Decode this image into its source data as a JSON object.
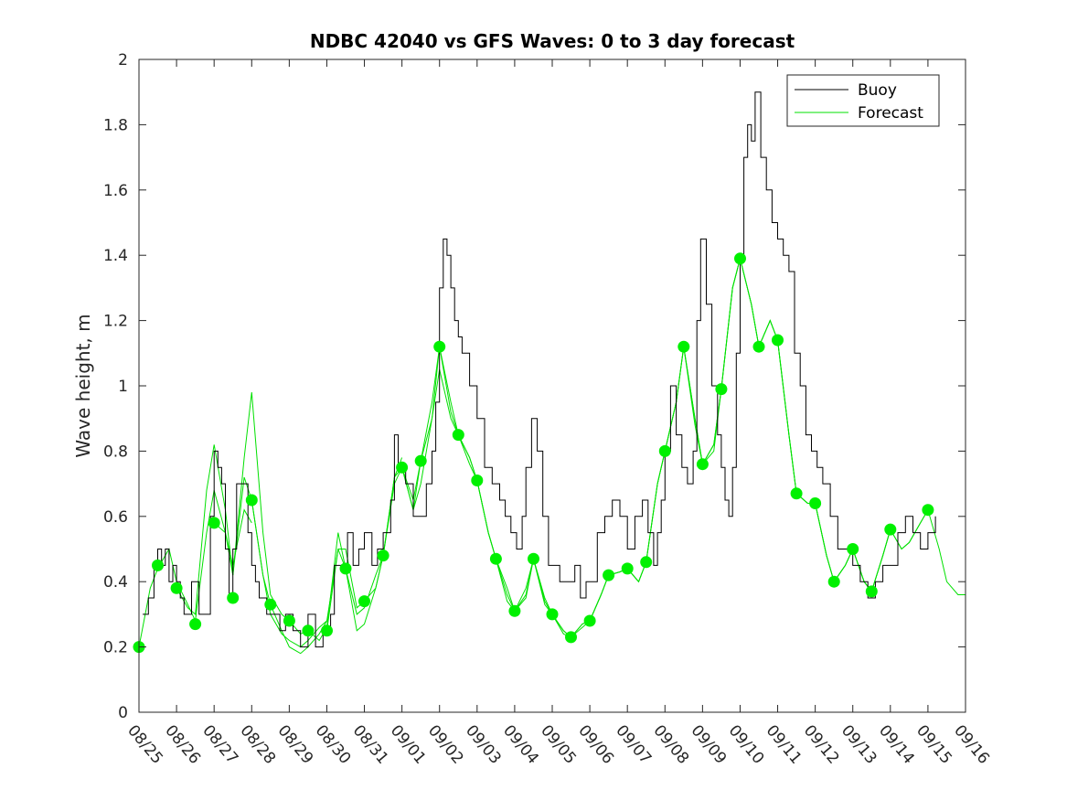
{
  "colors": {
    "buoy": "#000000",
    "forecast": "#00e000",
    "point": "#00f000"
  },
  "chart_data": {
    "type": "line",
    "title": "NDBC 42040 vs GFS Waves: 0 to 3 day forecast",
    "xlabel": "",
    "ylabel": "Wave height, m",
    "xlim": [
      0,
      22
    ],
    "ylim": [
      0,
      2
    ],
    "y_ticks": [
      0,
      0.2,
      0.4,
      0.6,
      0.8,
      1,
      1.2,
      1.4,
      1.6,
      1.8,
      2
    ],
    "y_tick_labels": [
      "0",
      "0.2",
      "0.4",
      "0.6",
      "0.8",
      "1",
      "1.2",
      "1.4",
      "1.6",
      "1.8",
      "2"
    ],
    "x_ticks": [
      0,
      1,
      2,
      3,
      4,
      5,
      6,
      7,
      8,
      9,
      10,
      11,
      12,
      13,
      14,
      15,
      16,
      17,
      18,
      19,
      20,
      21,
      22
    ],
    "x_tick_labels": [
      "08/25",
      "08/26",
      "08/27",
      "08/28",
      "08/29",
      "08/30",
      "08/31",
      "09/01",
      "09/02",
      "09/03",
      "09/04",
      "09/05",
      "09/06",
      "09/07",
      "09/08",
      "09/09",
      "09/10",
      "09/11",
      "09/12",
      "09/13",
      "09/14",
      "09/15",
      "09/16"
    ],
    "legend": {
      "position": "top-right",
      "entries": [
        "Buoy",
        "Forecast"
      ]
    },
    "buoy": {
      "x": [
        0.1,
        0.25,
        0.4,
        0.5,
        0.6,
        0.7,
        0.8,
        0.9,
        1.0,
        1.1,
        1.2,
        1.4,
        1.6,
        1.75,
        1.9,
        2.0,
        2.1,
        2.2,
        2.3,
        2.4,
        2.5,
        2.6,
        2.75,
        2.9,
        3.0,
        3.1,
        3.2,
        3.4,
        3.6,
        3.75,
        3.9,
        4.1,
        4.3,
        4.5,
        4.7,
        4.9,
        5.1,
        5.2,
        5.4,
        5.55,
        5.7,
        5.85,
        6.0,
        6.2,
        6.35,
        6.5,
        6.7,
        6.8,
        6.9,
        7.0,
        7.1,
        7.3,
        7.5,
        7.65,
        7.8,
        7.9,
        8.0,
        8.1,
        8.2,
        8.3,
        8.4,
        8.5,
        8.6,
        8.8,
        9.0,
        9.2,
        9.4,
        9.6,
        9.75,
        9.9,
        10.05,
        10.2,
        10.3,
        10.45,
        10.6,
        10.75,
        10.9,
        11.05,
        11.2,
        11.4,
        11.6,
        11.75,
        11.9,
        12.05,
        12.2,
        12.4,
        12.6,
        12.8,
        13.0,
        13.2,
        13.4,
        13.55,
        13.7,
        13.8,
        13.9,
        14.0,
        14.15,
        14.3,
        14.45,
        14.6,
        14.75,
        14.85,
        14.95,
        15.1,
        15.25,
        15.4,
        15.5,
        15.6,
        15.7,
        15.8,
        15.9,
        16.0,
        16.1,
        16.2,
        16.3,
        16.4,
        16.55,
        16.7,
        16.85,
        17.0,
        17.15,
        17.3,
        17.45,
        17.6,
        17.75,
        17.9,
        18.05,
        18.2,
        18.4,
        18.6,
        18.8,
        19.0,
        19.2,
        19.4,
        19.6,
        19.8,
        20.0,
        20.2,
        20.4,
        20.6,
        20.8,
        21.0,
        21.2
      ],
      "y": [
        0.3,
        0.35,
        0.45,
        0.5,
        0.45,
        0.5,
        0.4,
        0.45,
        0.4,
        0.35,
        0.3,
        0.4,
        0.3,
        0.3,
        0.6,
        0.8,
        0.75,
        0.7,
        0.5,
        0.35,
        0.5,
        0.7,
        0.7,
        0.55,
        0.45,
        0.4,
        0.35,
        0.3,
        0.3,
        0.25,
        0.3,
        0.25,
        0.2,
        0.3,
        0.2,
        0.25,
        0.3,
        0.45,
        0.45,
        0.55,
        0.45,
        0.5,
        0.55,
        0.45,
        0.5,
        0.55,
        0.65,
        0.85,
        0.75,
        0.75,
        0.7,
        0.6,
        0.6,
        0.7,
        0.8,
        0.95,
        1.3,
        1.45,
        1.4,
        1.3,
        1.2,
        1.15,
        1.1,
        1.0,
        0.9,
        0.75,
        0.7,
        0.65,
        0.6,
        0.55,
        0.5,
        0.6,
        0.75,
        0.9,
        0.8,
        0.6,
        0.45,
        0.45,
        0.4,
        0.4,
        0.45,
        0.35,
        0.4,
        0.4,
        0.55,
        0.6,
        0.65,
        0.6,
        0.5,
        0.6,
        0.65,
        0.55,
        0.45,
        0.55,
        0.65,
        0.8,
        1.0,
        0.85,
        0.75,
        0.7,
        0.8,
        1.2,
        1.45,
        1.25,
        1.0,
        0.85,
        0.75,
        0.65,
        0.6,
        0.75,
        1.1,
        1.4,
        1.7,
        1.8,
        1.75,
        1.9,
        1.7,
        1.6,
        1.5,
        1.45,
        1.4,
        1.35,
        1.1,
        1.0,
        0.85,
        0.8,
        0.75,
        0.7,
        0.6,
        0.5,
        0.5,
        0.45,
        0.4,
        0.35,
        0.4,
        0.45,
        0.45,
        0.55,
        0.6,
        0.55,
        0.5,
        0.55,
        0.6
      ]
    },
    "forecast_runs": [
      {
        "x": [
          0.0,
          0.3,
          0.5,
          0.8,
          1.0,
          1.3,
          1.5,
          1.8,
          2.0,
          2.3,
          2.5,
          2.8,
          3.0
        ],
        "y": [
          0.2,
          0.38,
          0.44,
          0.5,
          0.4,
          0.33,
          0.28,
          0.55,
          0.68,
          0.55,
          0.45,
          0.62,
          0.58
        ]
      },
      {
        "x": [
          1.0,
          1.3,
          1.5,
          1.8,
          2.0,
          2.3,
          2.5,
          2.8,
          3.0,
          3.3,
          3.5,
          3.8,
          4.0
        ],
        "y": [
          0.38,
          0.32,
          0.3,
          0.68,
          0.82,
          0.62,
          0.42,
          0.78,
          0.98,
          0.55,
          0.36,
          0.3,
          0.28
        ]
      },
      {
        "x": [
          2.0,
          2.3,
          2.5,
          2.8,
          3.0,
          3.3,
          3.5,
          3.8,
          4.0,
          4.3,
          4.5,
          4.8,
          5.0
        ],
        "y": [
          0.58,
          0.55,
          0.42,
          0.72,
          0.65,
          0.42,
          0.3,
          0.24,
          0.22,
          0.2,
          0.22,
          0.26,
          0.28
        ]
      },
      {
        "x": [
          3.0,
          3.3,
          3.5,
          3.8,
          4.0,
          4.3,
          4.5,
          4.8,
          5.0,
          5.3,
          5.5,
          5.8,
          6.0
        ],
        "y": [
          0.65,
          0.42,
          0.33,
          0.25,
          0.2,
          0.18,
          0.2,
          0.24,
          0.28,
          0.5,
          0.5,
          0.32,
          0.34
        ]
      },
      {
        "x": [
          4.0,
          4.3,
          4.5,
          4.8,
          5.0,
          5.3,
          5.5,
          5.8,
          6.0,
          6.3,
          6.5,
          6.8,
          7.0
        ],
        "y": [
          0.28,
          0.24,
          0.25,
          0.22,
          0.26,
          0.55,
          0.44,
          0.3,
          0.32,
          0.42,
          0.48,
          0.72,
          0.78
        ]
      },
      {
        "x": [
          5.0,
          5.3,
          5.5,
          5.8,
          6.0,
          6.3,
          6.5,
          6.8,
          7.0,
          7.3,
          7.5,
          7.8,
          8.0
        ],
        "y": [
          0.25,
          0.5,
          0.44,
          0.25,
          0.27,
          0.38,
          0.48,
          0.7,
          0.75,
          0.62,
          0.77,
          0.95,
          1.12
        ]
      },
      {
        "x": [
          6.0,
          6.3,
          6.5,
          6.8,
          7.0,
          7.3,
          7.5,
          7.8,
          8.0,
          8.3,
          8.5,
          8.8,
          9.0
        ],
        "y": [
          0.34,
          0.38,
          0.48,
          0.72,
          0.75,
          0.65,
          0.77,
          0.9,
          1.05,
          0.9,
          0.85,
          0.78,
          0.71
        ]
      },
      {
        "x": [
          7.0,
          7.3,
          7.5,
          7.8,
          8.0,
          8.3,
          8.5,
          8.8,
          9.0,
          9.3,
          9.5,
          9.8,
          10.0
        ],
        "y": [
          0.75,
          0.62,
          0.7,
          0.9,
          1.12,
          0.95,
          0.85,
          0.78,
          0.71,
          0.55,
          0.47,
          0.38,
          0.31
        ]
      },
      {
        "x": [
          8.0,
          8.3,
          8.5,
          8.8,
          9.0,
          9.3,
          9.5,
          9.8,
          10.0,
          10.3,
          10.5,
          10.8,
          11.0
        ],
        "y": [
          1.12,
          0.92,
          0.85,
          0.76,
          0.71,
          0.55,
          0.47,
          0.36,
          0.31,
          0.38,
          0.47,
          0.35,
          0.3
        ]
      },
      {
        "x": [
          9.0,
          9.3,
          9.5,
          9.8,
          10.0,
          10.3,
          10.5,
          10.8,
          11.0,
          11.3,
          11.5,
          11.8,
          12.0
        ],
        "y": [
          0.71,
          0.55,
          0.47,
          0.34,
          0.31,
          0.36,
          0.47,
          0.34,
          0.3,
          0.25,
          0.23,
          0.26,
          0.28
        ]
      },
      {
        "x": [
          10.0,
          10.3,
          10.5,
          10.8,
          11.0,
          11.3,
          11.5,
          11.8,
          12.0,
          12.3,
          12.5,
          12.8,
          13.0
        ],
        "y": [
          0.31,
          0.35,
          0.47,
          0.33,
          0.3,
          0.24,
          0.23,
          0.27,
          0.28,
          0.36,
          0.42,
          0.43,
          0.44
        ]
      },
      {
        "x": [
          11.0,
          11.3,
          11.5,
          11.8,
          12.0,
          12.3,
          12.5,
          12.8,
          13.0,
          13.3,
          13.5,
          13.8,
          14.0
        ],
        "y": [
          0.3,
          0.25,
          0.23,
          0.27,
          0.28,
          0.36,
          0.42,
          0.43,
          0.44,
          0.4,
          0.46,
          0.7,
          0.8
        ]
      },
      {
        "x": [
          12.0,
          12.3,
          12.5,
          12.8,
          13.0,
          13.3,
          13.5,
          13.8,
          14.0,
          14.3,
          14.5,
          14.8,
          15.0
        ],
        "y": [
          0.28,
          0.36,
          0.42,
          0.43,
          0.44,
          0.4,
          0.46,
          0.7,
          0.8,
          0.95,
          1.12,
          0.9,
          0.76
        ]
      },
      {
        "x": [
          13.0,
          13.3,
          13.5,
          13.8,
          14.0,
          14.3,
          14.5,
          14.8,
          15.0,
          15.3,
          15.5,
          15.8,
          16.0
        ],
        "y": [
          0.44,
          0.4,
          0.46,
          0.7,
          0.8,
          0.95,
          1.12,
          0.9,
          0.76,
          0.8,
          0.99,
          1.3,
          1.39
        ]
      },
      {
        "x": [
          14.0,
          14.3,
          14.5,
          14.8,
          15.0,
          15.3,
          15.5,
          15.8,
          16.0,
          16.3,
          16.5,
          16.8,
          17.0
        ],
        "y": [
          0.8,
          0.95,
          1.12,
          0.88,
          0.76,
          0.82,
          0.99,
          1.3,
          1.39,
          1.25,
          1.12,
          1.2,
          1.14
        ]
      },
      {
        "x": [
          15.0,
          15.3,
          15.5,
          15.8,
          16.0,
          16.3,
          16.5,
          16.8,
          17.0,
          17.3,
          17.5,
          17.8,
          18.0
        ],
        "y": [
          0.76,
          0.82,
          0.99,
          1.3,
          1.39,
          1.25,
          1.12,
          1.2,
          1.14,
          0.85,
          0.67,
          0.64,
          0.64
        ]
      },
      {
        "x": [
          16.0,
          16.3,
          16.5,
          16.8,
          17.0,
          17.3,
          17.5,
          17.8,
          18.0,
          18.3,
          18.5,
          18.8,
          19.0
        ],
        "y": [
          1.39,
          1.25,
          1.12,
          1.2,
          1.14,
          0.85,
          0.67,
          0.64,
          0.64,
          0.48,
          0.4,
          0.45,
          0.5
        ]
      },
      {
        "x": [
          17.0,
          17.3,
          17.5,
          17.8,
          18.0,
          18.3,
          18.5,
          18.8,
          19.0,
          19.3,
          19.5,
          19.8,
          20.0
        ],
        "y": [
          1.14,
          0.85,
          0.67,
          0.64,
          0.64,
          0.48,
          0.4,
          0.45,
          0.5,
          0.4,
          0.37,
          0.48,
          0.56
        ]
      },
      {
        "x": [
          18.0,
          18.3,
          18.5,
          18.8,
          19.0,
          19.3,
          19.5,
          19.8,
          20.0,
          20.3,
          20.5,
          20.8,
          21.0
        ],
        "y": [
          0.64,
          0.48,
          0.4,
          0.45,
          0.5,
          0.4,
          0.37,
          0.48,
          0.56,
          0.5,
          0.52,
          0.58,
          0.62
        ]
      },
      {
        "x": [
          19.0,
          19.3,
          19.5,
          19.8,
          20.0,
          20.3,
          20.5,
          20.8,
          21.0,
          21.3,
          21.5,
          21.8,
          22.0
        ],
        "y": [
          0.5,
          0.4,
          0.37,
          0.48,
          0.56,
          0.5,
          0.52,
          0.58,
          0.62,
          0.5,
          0.4,
          0.36,
          0.36
        ]
      }
    ],
    "forecast_points": {
      "x": [
        0,
        0.5,
        1,
        1.5,
        2,
        2.5,
        3,
        3.5,
        4,
        4.5,
        5,
        5.5,
        6,
        6.5,
        7,
        7.5,
        8,
        8.5,
        9,
        9.5,
        10,
        10.5,
        11,
        11.5,
        12,
        12.5,
        13,
        13.5,
        14,
        14.5,
        15,
        15.5,
        16,
        16.5,
        17,
        17.5,
        18,
        18.5,
        19,
        19.5,
        20,
        21
      ],
      "y": [
        0.2,
        0.45,
        0.38,
        0.27,
        0.58,
        0.35,
        0.65,
        0.33,
        0.28,
        0.25,
        0.25,
        0.44,
        0.34,
        0.48,
        0.75,
        0.77,
        1.12,
        0.85,
        0.71,
        0.47,
        0.31,
        0.47,
        0.3,
        0.23,
        0.28,
        0.42,
        0.44,
        0.46,
        0.8,
        1.12,
        0.76,
        0.99,
        1.39,
        1.12,
        1.14,
        0.67,
        0.64,
        0.4,
        0.5,
        0.37,
        0.56,
        0.62
      ]
    }
  }
}
